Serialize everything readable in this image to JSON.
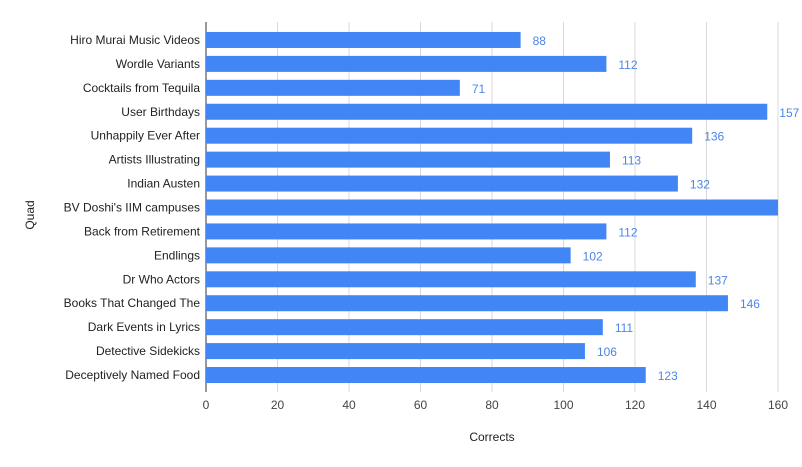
{
  "chart_data": {
    "type": "bar",
    "orientation": "horizontal",
    "title": "",
    "xlabel": "Corrects",
    "ylabel": "Quad",
    "xlim": [
      0,
      160
    ],
    "xticks": [
      0,
      20,
      40,
      60,
      80,
      100,
      120,
      140,
      160
    ],
    "grid": "vertical",
    "bar_color": "#4285f4",
    "label_color": "#4a86e8",
    "categories": [
      "Hiro Murai Music Videos",
      "Wordle Variants",
      "Cocktails from Tequila",
      "User Birthdays",
      "Unhappily Ever After",
      "Artists Illustrating",
      "Indian Austen",
      "BV Doshi's IIM campuses",
      "Back from Retirement",
      "Endlings",
      "Dr Who Actors",
      "Books That Changed The",
      "Dark Events in Lyrics",
      "Detective Sidekicks",
      "Deceptively Named Food"
    ],
    "values": [
      88,
      112,
      71,
      157,
      136,
      113,
      132,
      165,
      112,
      102,
      137,
      146,
      111,
      106,
      123
    ],
    "data_labels": [
      "88",
      "112",
      "71",
      "157",
      "136",
      "113",
      "132",
      "",
      "112",
      "102",
      "137",
      "146",
      "111",
      "106",
      "123"
    ]
  }
}
